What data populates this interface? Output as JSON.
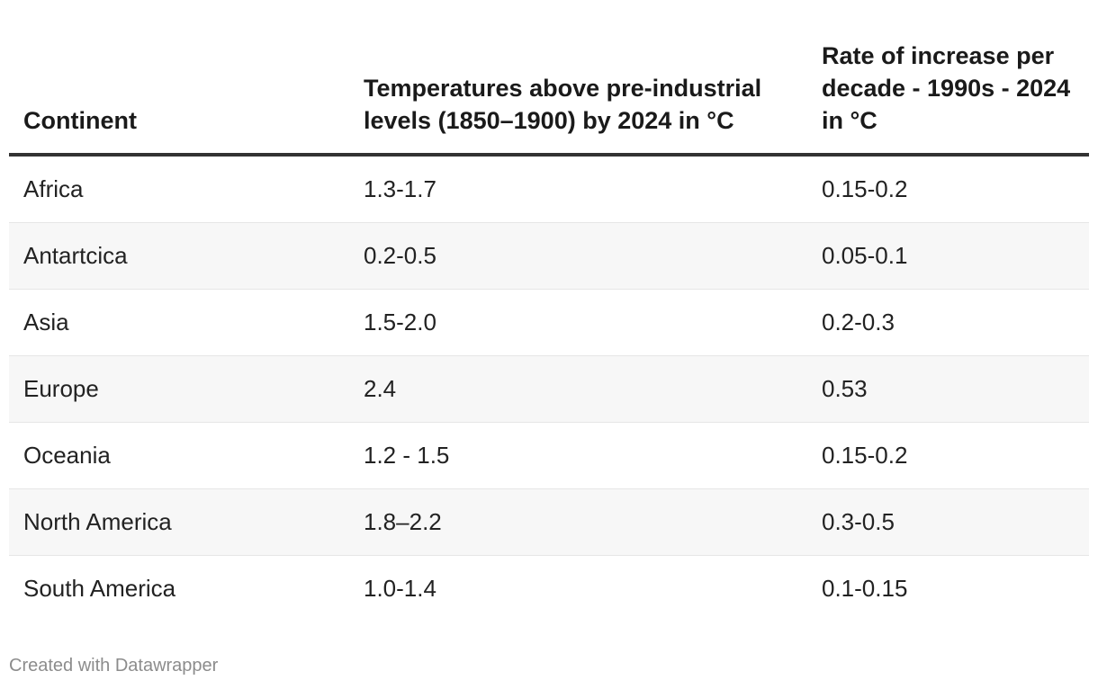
{
  "chart_data": {
    "type": "table",
    "columns": [
      "Continent",
      "Temperatures above pre-industrial levels (1850–1900) by 2024 in °C",
      "Rate of increase per decade - 1990s - 2024 in °C"
    ],
    "rows": [
      [
        "Africa",
        "1.3-1.7",
        "0.15-0.2"
      ],
      [
        "Antartcica",
        "0.2-0.5",
        "0.05-0.1"
      ],
      [
        "Asia",
        "1.5-2.0",
        "0.2-0.3"
      ],
      [
        "Europe",
        "2.4",
        "0.53"
      ],
      [
        "Oceania",
        "1.2 - 1.5",
        "0.15-0.2"
      ],
      [
        "North America",
        "1.8–2.2",
        "0.3-0.5"
      ],
      [
        "South America",
        "1.0-1.4",
        "0.1-0.15"
      ]
    ]
  },
  "footer": {
    "credit": "Created with Datawrapper"
  },
  "colors": {
    "header_rule": "#333333",
    "stripe": "#f7f7f7",
    "row_divider": "#e6e6e6",
    "credit_text": "#8c8c8c"
  }
}
